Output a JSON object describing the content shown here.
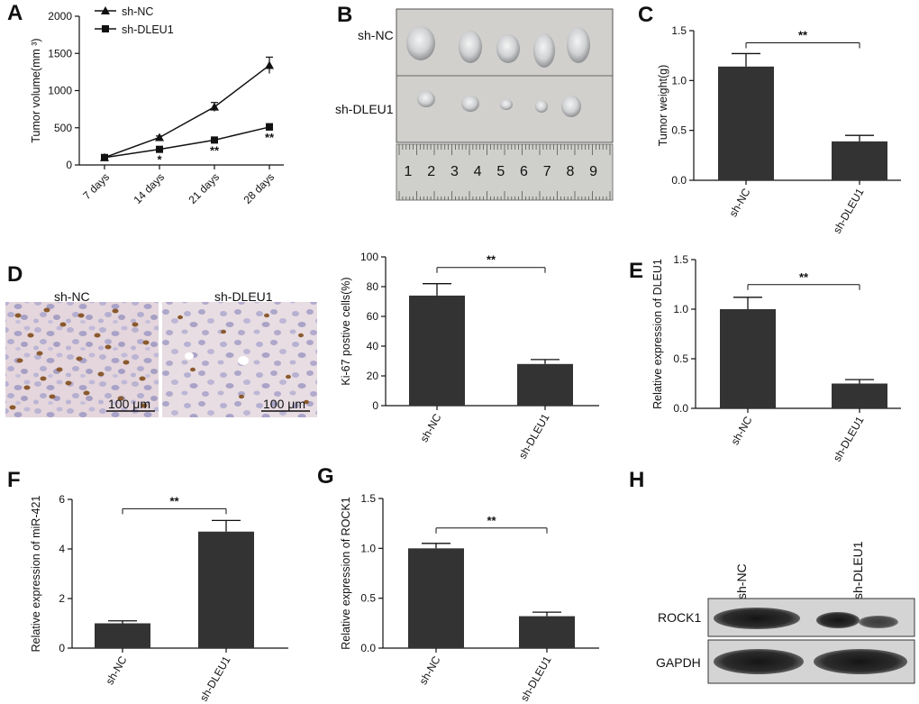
{
  "panel_labels": [
    "A",
    "B",
    "C",
    "D",
    "E",
    "F",
    "G",
    "H"
  ],
  "colors": {
    "bar": "#333333",
    "axis": "#111111",
    "photo_bg": "#c9c7c4",
    "tissue_bg": "#e6d8dc"
  },
  "photo_b": {
    "row1_label": "sh-NC",
    "row2_label": "sh-DLEU1",
    "ruler_numbers": [
      "1",
      "2",
      "3",
      "4",
      "5",
      "6",
      "7",
      "8",
      "9"
    ]
  },
  "photo_d": {
    "left_label": "sh-NC",
    "right_label": "sh-DLEU1",
    "left_scale": "100 μm",
    "right_scale": "100 μm"
  },
  "blot_h": {
    "lane_labels": [
      "sh-NC",
      "sh-DLEU1"
    ],
    "band_labels": [
      "ROCK1",
      "GAPDH"
    ],
    "rock1_intensity": [
      0.85,
      0.45
    ],
    "gapdh_intensity": [
      0.9,
      0.9
    ]
  },
  "chart_data": [
    {
      "id": "A",
      "type": "line",
      "categories": [
        "7 days",
        "14 days",
        "21 days",
        "28 days"
      ],
      "ylabel": "Tumor volume(mm ³)",
      "ylim": [
        0,
        2000
      ],
      "yticks": [
        0,
        500,
        1000,
        1500,
        2000
      ],
      "series": [
        {
          "name": "sh-NC",
          "marker": "triangle",
          "values": [
            100,
            370,
            780,
            1340
          ],
          "errors": [
            15,
            20,
            60,
            110
          ]
        },
        {
          "name": "sh-DLEU1",
          "marker": "square",
          "values": [
            100,
            210,
            335,
            510
          ],
          "errors": [
            10,
            15,
            20,
            45
          ]
        }
      ],
      "annotations": [
        "",
        "*",
        "**",
        "**"
      ]
    },
    {
      "id": "C",
      "type": "bar",
      "categories": [
        "sh-NC",
        "sh-DLEU1"
      ],
      "values": [
        1.14,
        0.39
      ],
      "errors": [
        0.13,
        0.06
      ],
      "ylabel": "Tumor weight(g)",
      "ylim": [
        0,
        1.5
      ],
      "yticks": [
        "0.0",
        "0.5",
        "1.0",
        "1.5"
      ],
      "significance": "**"
    },
    {
      "id": "D",
      "type": "bar",
      "categories": [
        "sh-NC",
        "sh-DLEU1"
      ],
      "values": [
        74,
        28
      ],
      "errors": [
        8,
        3
      ],
      "ylabel": "Ki-67 postive cells(%)",
      "ylim": [
        0,
        100
      ],
      "yticks": [
        "0",
        "20",
        "40",
        "60",
        "80",
        "100"
      ],
      "significance": "**"
    },
    {
      "id": "E",
      "type": "bar",
      "categories": [
        "sh-NC",
        "sh-DLEU1"
      ],
      "values": [
        1.0,
        0.25
      ],
      "errors": [
        0.12,
        0.04
      ],
      "ylabel": "Relative expression of DLEU1",
      "ylim": [
        0,
        1.5
      ],
      "yticks": [
        "0.0",
        "0.5",
        "1.0",
        "1.5"
      ],
      "significance": "**"
    },
    {
      "id": "F",
      "type": "bar",
      "categories": [
        "sh-NC",
        "sh-DLEU1"
      ],
      "values": [
        1.0,
        4.7
      ],
      "errors": [
        0.1,
        0.45
      ],
      "ylabel": "Relative expression of miR-421",
      "ylim": [
        0,
        6
      ],
      "yticks": [
        "0",
        "2",
        "4",
        "6"
      ],
      "significance": "**"
    },
    {
      "id": "G",
      "type": "bar",
      "categories": [
        "sh-NC",
        "sh-DLEU1"
      ],
      "values": [
        1.0,
        0.32
      ],
      "errors": [
        0.05,
        0.04
      ],
      "ylabel": "Relative expression of ROCK1",
      "ylim": [
        0,
        1.5
      ],
      "yticks": [
        "0.0",
        "0.5",
        "1.0",
        "1.5"
      ],
      "significance": "**"
    }
  ]
}
